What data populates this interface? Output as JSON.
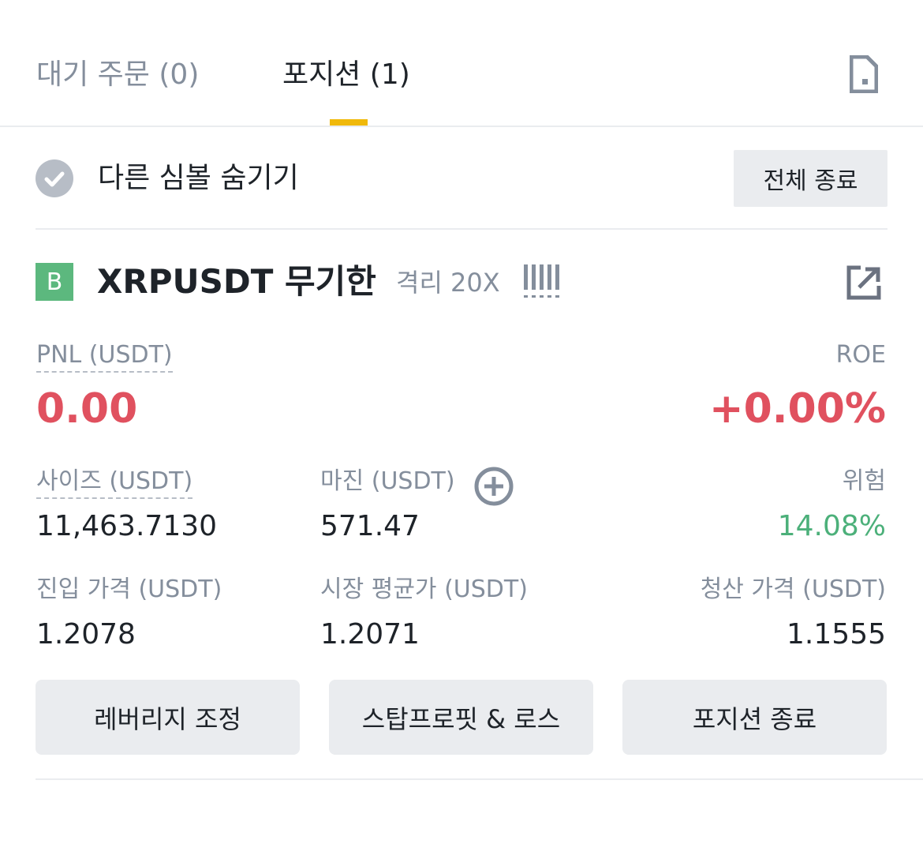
{
  "tabs": [
    {
      "label": "대기 주문 (0)",
      "active": false
    },
    {
      "label": "포지션 (1)",
      "active": true
    }
  ],
  "accent": "#f0b90b",
  "filter": {
    "hide_other_symbols": "다른 심볼 숨기기",
    "checked": true,
    "close_all": "전체 종료"
  },
  "position": {
    "side_badge": "B",
    "symbol": "XRPUSDT 무기한",
    "margin_mode": "격리 20X",
    "pnl_label": "PNL (USDT)",
    "pnl": "0.00",
    "roe_label": "ROE",
    "roe": "+0.00%",
    "size_label": "사이즈 (USDT)",
    "size": "11,463.7130",
    "margin_label": "마진 (USDT)",
    "margin": "571.47",
    "risk_label": "위험",
    "risk": "14.08%",
    "entry_label": "진입 가격 (USDT)",
    "entry": "1.2078",
    "mark_label": "시장 평균가 (USDT)",
    "mark": "1.2071",
    "liq_label": "청산 가격 (USDT)",
    "liq": "1.1555"
  },
  "actions": {
    "leverage": "레버리지 조정",
    "tpsl": "스탑프로핏 & 로스",
    "close": "포지션 종료"
  },
  "colors": {
    "loss": "#e0515f",
    "profit": "#4cb07a",
    "buy": "#5cb87e"
  }
}
